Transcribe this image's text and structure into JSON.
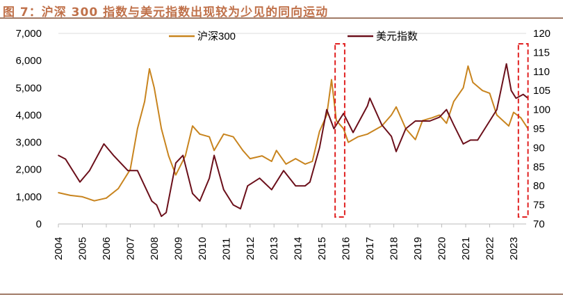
{
  "title": "图 7：沪深 300 指数与美元指数出现较为少见的同向运动",
  "colors": {
    "csi300": "#c8841e",
    "dxy": "#6b0f1a",
    "highlight": "#e02020",
    "title": "#c0714a"
  },
  "chart_data": {
    "type": "line",
    "title": "图 7：沪深 300 指数与美元指数出现较为少见的同向运动",
    "legend_position": "top-center",
    "grid": false,
    "x_ticks": [
      "2004",
      "2005",
      "2006",
      "2007",
      "2008",
      "2009",
      "2010",
      "2011",
      "2012",
      "2013",
      "2014",
      "2015",
      "2016",
      "2017",
      "2018",
      "2019",
      "2020",
      "2021",
      "2022",
      "2023"
    ],
    "xlim": [
      2004,
      2023.7
    ],
    "left_axis": {
      "ylim": [
        0,
        7000
      ],
      "ticks": [
        "0",
        "1,000",
        "2,000",
        "3,000",
        "4,000",
        "5,000",
        "6,000",
        "7,000"
      ]
    },
    "right_axis": {
      "ylim": [
        70,
        120
      ],
      "ticks": [
        "70",
        "75",
        "80",
        "85",
        "90",
        "95",
        "100",
        "105",
        "110",
        "115",
        "120"
      ]
    },
    "series": [
      {
        "name": "沪深300",
        "axis": "left",
        "x": [
          2004.0,
          2004.5,
          2005.0,
          2005.5,
          2006.0,
          2006.5,
          2007.0,
          2007.3,
          2007.6,
          2007.8,
          2008.0,
          2008.3,
          2008.6,
          2008.9,
          2009.3,
          2009.6,
          2009.9,
          2010.3,
          2010.5,
          2010.9,
          2011.3,
          2011.7,
          2012.0,
          2012.5,
          2012.9,
          2013.1,
          2013.5,
          2013.9,
          2014.3,
          2014.6,
          2014.9,
          2015.2,
          2015.4,
          2015.6,
          2015.9,
          2016.1,
          2016.5,
          2016.9,
          2017.5,
          2017.9,
          2018.1,
          2018.5,
          2018.9,
          2019.2,
          2019.6,
          2019.9,
          2020.2,
          2020.5,
          2020.9,
          2021.1,
          2021.3,
          2021.7,
          2022.0,
          2022.3,
          2022.8,
          2023.0,
          2023.3,
          2023.6
        ],
        "values": [
          1150,
          1050,
          1000,
          850,
          950,
          1300,
          2000,
          3500,
          4500,
          5700,
          5000,
          3500,
          2500,
          1800,
          2500,
          3600,
          3300,
          3200,
          2700,
          3300,
          3200,
          2700,
          2400,
          2500,
          2300,
          2700,
          2200,
          2400,
          2200,
          2300,
          3400,
          4000,
          5300,
          3800,
          3500,
          3000,
          3200,
          3300,
          3600,
          4000,
          4300,
          3500,
          3100,
          3800,
          3900,
          4000,
          3700,
          4500,
          5000,
          5800,
          5200,
          4900,
          4800,
          4000,
          3600,
          4100,
          3900,
          3500
        ]
      },
      {
        "name": "美元指数",
        "axis": "right",
        "x": [
          2004.0,
          2004.3,
          2004.9,
          2005.3,
          2005.9,
          2006.3,
          2006.9,
          2007.3,
          2007.9,
          2008.1,
          2008.3,
          2008.5,
          2008.9,
          2009.2,
          2009.6,
          2009.9,
          2010.3,
          2010.5,
          2010.9,
          2011.3,
          2011.6,
          2011.9,
          2012.4,
          2012.9,
          2013.4,
          2013.9,
          2014.3,
          2014.5,
          2014.9,
          2015.2,
          2015.5,
          2015.9,
          2016.3,
          2016.9,
          2017.0,
          2017.5,
          2017.9,
          2018.1,
          2018.5,
          2018.9,
          2019.5,
          2019.9,
          2020.2,
          2020.5,
          2020.9,
          2021.2,
          2021.5,
          2021.9,
          2022.3,
          2022.7,
          2022.9,
          2023.1,
          2023.4,
          2023.6
        ],
        "values": [
          88,
          87,
          81,
          84,
          91,
          88,
          84,
          84,
          76,
          75,
          72,
          73,
          86,
          88,
          78,
          76,
          82,
          88,
          79,
          75,
          74,
          80,
          82,
          79,
          84,
          80,
          80,
          81,
          90,
          100,
          95,
          99,
          94,
          101,
          103,
          96,
          93,
          89,
          95,
          97,
          97,
          98,
          100,
          96,
          91,
          92,
          92,
          96,
          100,
          112,
          105,
          103,
          104,
          103
        ]
      }
    ],
    "highlights": [
      {
        "x_start": 2015.55,
        "x_end": 2015.95
      },
      {
        "x_start": 2023.2,
        "x_end": 2023.6
      }
    ]
  }
}
